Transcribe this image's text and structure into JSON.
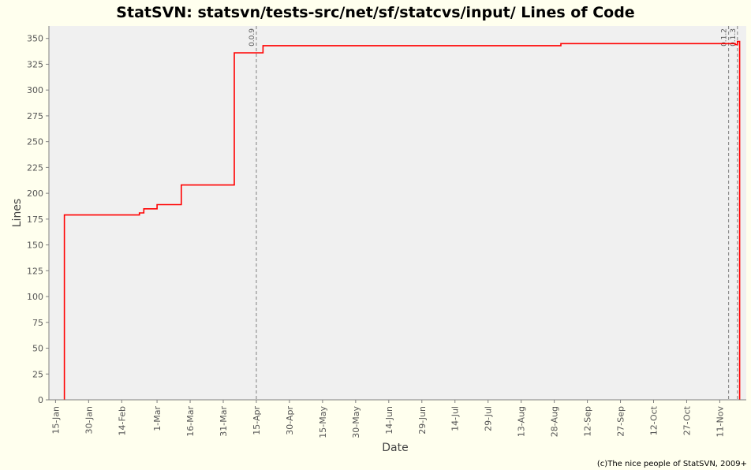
{
  "chart_data": {
    "type": "line",
    "title": "StatSVN: statsvn/tests-src/net/sf/statcvs/input/ Lines of Code",
    "xlabel": "Date",
    "ylabel": "Lines",
    "ylim": [
      0,
      362
    ],
    "xlim": [
      "2004-01-12",
      "2004-11-23"
    ],
    "y_ticks": [
      0,
      25,
      50,
      75,
      100,
      125,
      150,
      175,
      200,
      225,
      250,
      275,
      300,
      325,
      350
    ],
    "x_ticks": [
      {
        "label": "15-Jan",
        "date": "2004-01-15"
      },
      {
        "label": "30-Jan",
        "date": "2004-01-30"
      },
      {
        "label": "14-Feb",
        "date": "2004-02-14"
      },
      {
        "label": "1-Mar",
        "date": "2004-03-01"
      },
      {
        "label": "16-Mar",
        "date": "2004-03-16"
      },
      {
        "label": "31-Mar",
        "date": "2004-03-31"
      },
      {
        "label": "15-Apr",
        "date": "2004-04-15"
      },
      {
        "label": "30-Apr",
        "date": "2004-04-30"
      },
      {
        "label": "15-May",
        "date": "2004-05-15"
      },
      {
        "label": "30-May",
        "date": "2004-05-30"
      },
      {
        "label": "14-Jun",
        "date": "2004-06-14"
      },
      {
        "label": "29-Jun",
        "date": "2004-06-29"
      },
      {
        "label": "14-Jul",
        "date": "2004-07-14"
      },
      {
        "label": "29-Jul",
        "date": "2004-07-29"
      },
      {
        "label": "13-Aug",
        "date": "2004-08-13"
      },
      {
        "label": "28-Aug",
        "date": "2004-08-28"
      },
      {
        "label": "12-Sep",
        "date": "2004-09-12"
      },
      {
        "label": "27-Sep",
        "date": "2004-09-27"
      },
      {
        "label": "12-Oct",
        "date": "2004-10-12"
      },
      {
        "label": "27-Oct",
        "date": "2004-10-27"
      },
      {
        "label": "11-Nov",
        "date": "2004-11-11"
      }
    ],
    "series": [
      {
        "color": "#ff0000",
        "step": true,
        "points": [
          {
            "date": "2004-01-19",
            "lines": 0
          },
          {
            "date": "2004-01-19",
            "lines": 179
          },
          {
            "date": "2004-02-22",
            "lines": 181
          },
          {
            "date": "2004-02-24",
            "lines": 185
          },
          {
            "date": "2004-03-01",
            "lines": 189
          },
          {
            "date": "2004-03-12",
            "lines": 199
          },
          {
            "date": "2004-03-12",
            "lines": 208
          },
          {
            "date": "2004-04-05",
            "lines": 336
          },
          {
            "date": "2004-04-18",
            "lines": 343
          },
          {
            "date": "2004-08-31",
            "lines": 345
          },
          {
            "date": "2004-11-18",
            "lines": 344
          },
          {
            "date": "2004-11-19",
            "lines": 347
          },
          {
            "date": "2004-11-20",
            "lines": 347
          },
          {
            "date": "2004-11-20",
            "lines": 0
          }
        ]
      }
    ],
    "annotations": [
      {
        "label": "0.0.9",
        "date": "2004-04-15"
      },
      {
        "label": "0.1.2",
        "date": "2004-11-15"
      },
      {
        "label": "0.1.3",
        "date": "2004-11-19"
      }
    ],
    "grid": false,
    "plot_background": "#f0f0f0",
    "page_background": "#ffffee",
    "line_color": "#ff0000",
    "annotation_color": "#808080",
    "footer": "(c)The nice people of StatSVN, 2009+"
  }
}
